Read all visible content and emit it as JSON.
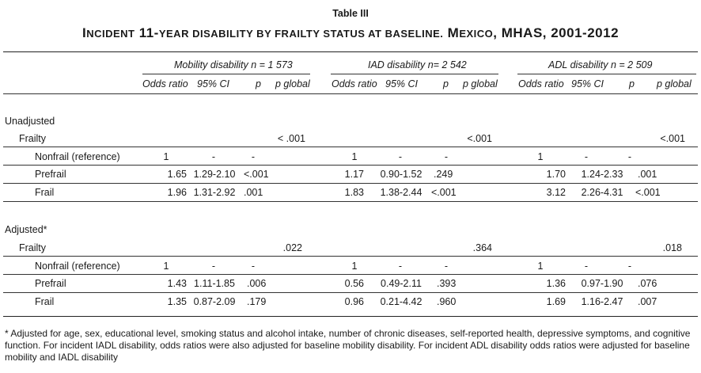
{
  "table_label": "Table III",
  "title_prefix": "I",
  "title_sc1": "ncident",
  "title_num": " 11-",
  "title_sc2": "year disability by frailty status at baseline.",
  "title_m": " M",
  "title_sc3": "exico",
  "title_tail": ", MHAS, 2001-2012",
  "groups": [
    "Mobility disability n = 1 573",
    "IAD disability n= 2 542",
    "ADL disability n = 2 509"
  ],
  "columns": [
    "Odds ratio",
    "95% CI",
    "p",
    "p global"
  ],
  "sections": [
    {
      "label": "Unadjusted",
      "frailty_label": "Frailty",
      "globals": [
        "< .001",
        "<.001",
        "<.001"
      ],
      "rows": [
        {
          "label": "Nonfrail (reference)",
          "cells": [
            [
              "1",
              "-",
              "-"
            ],
            [
              "1",
              "-",
              "-"
            ],
            [
              "1",
              "-",
              "-"
            ]
          ]
        },
        {
          "label": "Prefrail",
          "cells": [
            [
              "1.65",
              "1.29-2.10",
              "<.001"
            ],
            [
              "1.17",
              "0.90-1.52",
              ".249"
            ],
            [
              "1.70",
              "1.24-2.33",
              ".001"
            ]
          ]
        },
        {
          "label": "Frail",
          "cells": [
            [
              "1.96",
              "1.31-2.92",
              ".001"
            ],
            [
              "1.83",
              "1.38-2.44",
              "<.001"
            ],
            [
              "3.12",
              "2.26-4.31",
              "<.001"
            ]
          ]
        }
      ]
    },
    {
      "label": "Adjusted*",
      "frailty_label": "Frailty",
      "globals": [
        ".022",
        ".364",
        ".018"
      ],
      "rows": [
        {
          "label": "Nonfrail (reference)",
          "cells": [
            [
              "1",
              "-",
              "-"
            ],
            [
              "1",
              "-",
              "-"
            ],
            [
              "1",
              "-",
              "-"
            ]
          ]
        },
        {
          "label": "Prefrail",
          "cells": [
            [
              "1.43",
              "1.11-1.85",
              ".006"
            ],
            [
              "0.56",
              "0.49-2.11",
              ".393"
            ],
            [
              "1.36",
              "0.97-1.90",
              ".076"
            ]
          ]
        },
        {
          "label": "Frail",
          "cells": [
            [
              "1.35",
              "0.87-2.09",
              ".179"
            ],
            [
              "0.96",
              "0.21-4.42",
              ".960"
            ],
            [
              "1.69",
              "1.16-2.47",
              ".007"
            ]
          ]
        }
      ]
    }
  ],
  "footnote": "* Adjusted for age, sex, educational level, smoking status and alcohol intake, number of chronic diseases, self-reported health, depressive symptoms, and cognitive function. For incident IADL disability, odds ratios were also adjusted for baseline mobility disability. For incident ADL disability odds ratios were adjusted for baseline mobility and IADL disability"
}
